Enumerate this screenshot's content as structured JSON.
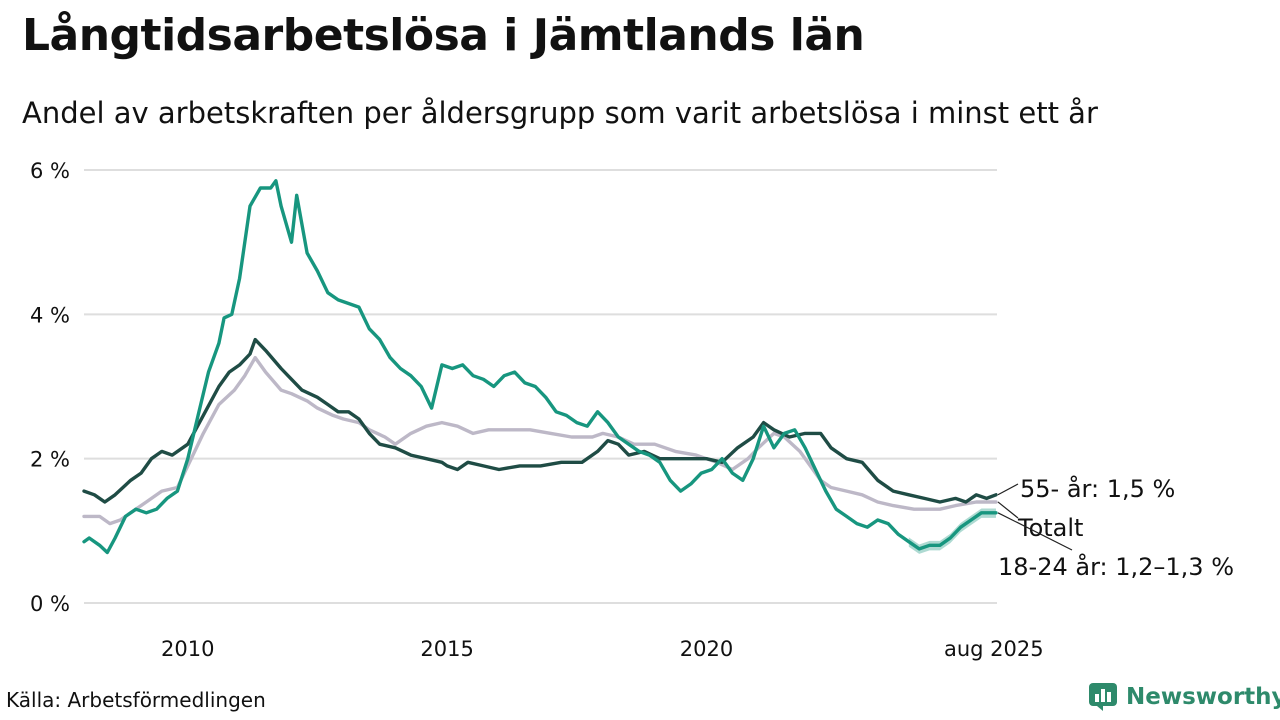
{
  "title": "Långtidsarbetslösa i Jämtlands län",
  "subtitle": "Andel av arbetskraften per åldersgrupp som varit arbetslösa i minst ett år",
  "source": "Källa: Arbetsförmedlingen",
  "brand": "Newsworthy",
  "chart_data": {
    "type": "line",
    "x_unit": "year",
    "xlim": [
      2008.0,
      2025.6
    ],
    "ylim": [
      0,
      6
    ],
    "grid": true,
    "y_ticks": [
      {
        "value": 0,
        "label": "0 %"
      },
      {
        "value": 2,
        "label": "2 %"
      },
      {
        "value": 4,
        "label": "4 %"
      },
      {
        "value": 6,
        "label": "6 %"
      }
    ],
    "x_ticks": [
      {
        "value": 2010,
        "label": "2010"
      },
      {
        "value": 2015,
        "label": "2015"
      },
      {
        "value": 2020,
        "label": "2020"
      },
      {
        "value": 2025.58,
        "label": "aug 2025"
      }
    ],
    "series": [
      {
        "name": "Totalt",
        "color": "#bdb8c7",
        "label": "Totalt",
        "points": [
          [
            2008.0,
            1.2
          ],
          [
            2008.3,
            1.2
          ],
          [
            2008.5,
            1.1
          ],
          [
            2008.7,
            1.15
          ],
          [
            2009.0,
            1.3
          ],
          [
            2009.2,
            1.4
          ],
          [
            2009.5,
            1.55
          ],
          [
            2009.8,
            1.6
          ],
          [
            2010.0,
            1.9
          ],
          [
            2010.3,
            2.35
          ],
          [
            2010.6,
            2.75
          ],
          [
            2010.9,
            2.95
          ],
          [
            2011.1,
            3.15
          ],
          [
            2011.3,
            3.4
          ],
          [
            2011.5,
            3.2
          ],
          [
            2011.8,
            2.95
          ],
          [
            2012.0,
            2.9
          ],
          [
            2012.3,
            2.8
          ],
          [
            2012.5,
            2.7
          ],
          [
            2012.8,
            2.6
          ],
          [
            2013.0,
            2.55
          ],
          [
            2013.3,
            2.5
          ],
          [
            2013.5,
            2.4
          ],
          [
            2013.8,
            2.3
          ],
          [
            2014.0,
            2.2
          ],
          [
            2014.3,
            2.35
          ],
          [
            2014.6,
            2.45
          ],
          [
            2014.9,
            2.5
          ],
          [
            2015.2,
            2.45
          ],
          [
            2015.5,
            2.35
          ],
          [
            2015.8,
            2.4
          ],
          [
            2016.2,
            2.4
          ],
          [
            2016.6,
            2.4
          ],
          [
            2017.0,
            2.35
          ],
          [
            2017.4,
            2.3
          ],
          [
            2017.8,
            2.3
          ],
          [
            2018.0,
            2.35
          ],
          [
            2018.3,
            2.3
          ],
          [
            2018.6,
            2.2
          ],
          [
            2019.0,
            2.2
          ],
          [
            2019.4,
            2.1
          ],
          [
            2019.8,
            2.05
          ],
          [
            2020.2,
            1.95
          ],
          [
            2020.5,
            1.85
          ],
          [
            2020.8,
            2.0
          ],
          [
            2021.0,
            2.15
          ],
          [
            2021.3,
            2.35
          ],
          [
            2021.5,
            2.3
          ],
          [
            2021.8,
            2.1
          ],
          [
            2022.0,
            1.9
          ],
          [
            2022.2,
            1.7
          ],
          [
            2022.4,
            1.6
          ],
          [
            2022.7,
            1.55
          ],
          [
            2023.0,
            1.5
          ],
          [
            2023.3,
            1.4
          ],
          [
            2023.6,
            1.35
          ],
          [
            2024.0,
            1.3
          ],
          [
            2024.5,
            1.3
          ],
          [
            2024.8,
            1.35
          ],
          [
            2025.2,
            1.4
          ],
          [
            2025.58,
            1.4
          ]
        ]
      },
      {
        "name": "55- år",
        "color": "#1f4c45",
        "label": "55- år: 1,5 %",
        "points": [
          [
            2008.0,
            1.55
          ],
          [
            2008.2,
            1.5
          ],
          [
            2008.4,
            1.4
          ],
          [
            2008.6,
            1.5
          ],
          [
            2008.9,
            1.7
          ],
          [
            2009.1,
            1.8
          ],
          [
            2009.3,
            2.0
          ],
          [
            2009.5,
            2.1
          ],
          [
            2009.7,
            2.05
          ],
          [
            2010.0,
            2.2
          ],
          [
            2010.3,
            2.6
          ],
          [
            2010.6,
            3.0
          ],
          [
            2010.8,
            3.2
          ],
          [
            2011.0,
            3.3
          ],
          [
            2011.2,
            3.45
          ],
          [
            2011.3,
            3.65
          ],
          [
            2011.5,
            3.5
          ],
          [
            2011.8,
            3.25
          ],
          [
            2012.0,
            3.1
          ],
          [
            2012.2,
            2.95
          ],
          [
            2012.5,
            2.85
          ],
          [
            2012.7,
            2.75
          ],
          [
            2012.9,
            2.65
          ],
          [
            2013.1,
            2.65
          ],
          [
            2013.3,
            2.55
          ],
          [
            2013.5,
            2.35
          ],
          [
            2013.7,
            2.2
          ],
          [
            2014.0,
            2.15
          ],
          [
            2014.3,
            2.05
          ],
          [
            2014.6,
            2.0
          ],
          [
            2014.9,
            1.95
          ],
          [
            2015.0,
            1.9
          ],
          [
            2015.2,
            1.85
          ],
          [
            2015.4,
            1.95
          ],
          [
            2015.7,
            1.9
          ],
          [
            2016.0,
            1.85
          ],
          [
            2016.4,
            1.9
          ],
          [
            2016.8,
            1.9
          ],
          [
            2017.2,
            1.95
          ],
          [
            2017.6,
            1.95
          ],
          [
            2017.9,
            2.1
          ],
          [
            2018.1,
            2.25
          ],
          [
            2018.3,
            2.2
          ],
          [
            2018.5,
            2.05
          ],
          [
            2018.8,
            2.1
          ],
          [
            2019.1,
            2.0
          ],
          [
            2019.4,
            2.0
          ],
          [
            2019.7,
            2.0
          ],
          [
            2020.0,
            2.0
          ],
          [
            2020.3,
            1.95
          ],
          [
            2020.6,
            2.15
          ],
          [
            2020.9,
            2.3
          ],
          [
            2021.1,
            2.5
          ],
          [
            2021.3,
            2.4
          ],
          [
            2021.6,
            2.3
          ],
          [
            2021.9,
            2.35
          ],
          [
            2022.2,
            2.35
          ],
          [
            2022.4,
            2.15
          ],
          [
            2022.7,
            2.0
          ],
          [
            2023.0,
            1.95
          ],
          [
            2023.3,
            1.7
          ],
          [
            2023.6,
            1.55
          ],
          [
            2023.9,
            1.5
          ],
          [
            2024.2,
            1.45
          ],
          [
            2024.5,
            1.4
          ],
          [
            2024.8,
            1.45
          ],
          [
            2025.0,
            1.4
          ],
          [
            2025.2,
            1.5
          ],
          [
            2025.4,
            1.45
          ],
          [
            2025.58,
            1.5
          ]
        ]
      },
      {
        "name": "18-24 år",
        "color": "#17967f",
        "label": "18-24 år: 1,2–1,3 %",
        "band": [
          1.2,
          1.3
        ],
        "points": [
          [
            2008.0,
            0.85
          ],
          [
            2008.1,
            0.9
          ],
          [
            2008.3,
            0.8
          ],
          [
            2008.45,
            0.7
          ],
          [
            2008.6,
            0.9
          ],
          [
            2008.8,
            1.2
          ],
          [
            2009.0,
            1.3
          ],
          [
            2009.2,
            1.25
          ],
          [
            2009.4,
            1.3
          ],
          [
            2009.6,
            1.45
          ],
          [
            2009.8,
            1.55
          ],
          [
            2010.0,
            2.0
          ],
          [
            2010.2,
            2.6
          ],
          [
            2010.4,
            3.2
          ],
          [
            2010.6,
            3.6
          ],
          [
            2010.7,
            3.95
          ],
          [
            2010.85,
            4.0
          ],
          [
            2011.0,
            4.5
          ],
          [
            2011.2,
            5.5
          ],
          [
            2011.4,
            5.75
          ],
          [
            2011.6,
            5.75
          ],
          [
            2011.7,
            5.85
          ],
          [
            2011.8,
            5.5
          ],
          [
            2012.0,
            5.0
          ],
          [
            2012.1,
            5.65
          ],
          [
            2012.3,
            4.85
          ],
          [
            2012.5,
            4.6
          ],
          [
            2012.7,
            4.3
          ],
          [
            2012.9,
            4.2
          ],
          [
            2013.1,
            4.15
          ],
          [
            2013.3,
            4.1
          ],
          [
            2013.5,
            3.8
          ],
          [
            2013.7,
            3.65
          ],
          [
            2013.9,
            3.4
          ],
          [
            2014.1,
            3.25
          ],
          [
            2014.3,
            3.15
          ],
          [
            2014.5,
            3.0
          ],
          [
            2014.7,
            2.7
          ],
          [
            2014.9,
            3.3
          ],
          [
            2015.1,
            3.25
          ],
          [
            2015.3,
            3.3
          ],
          [
            2015.5,
            3.15
          ],
          [
            2015.7,
            3.1
          ],
          [
            2015.9,
            3.0
          ],
          [
            2016.1,
            3.15
          ],
          [
            2016.3,
            3.2
          ],
          [
            2016.5,
            3.05
          ],
          [
            2016.7,
            3.0
          ],
          [
            2016.9,
            2.85
          ],
          [
            2017.1,
            2.65
          ],
          [
            2017.3,
            2.6
          ],
          [
            2017.5,
            2.5
          ],
          [
            2017.7,
            2.45
          ],
          [
            2017.9,
            2.65
          ],
          [
            2018.1,
            2.5
          ],
          [
            2018.3,
            2.3
          ],
          [
            2018.5,
            2.2
          ],
          [
            2018.7,
            2.1
          ],
          [
            2018.9,
            2.05
          ],
          [
            2019.1,
            1.95
          ],
          [
            2019.3,
            1.7
          ],
          [
            2019.5,
            1.55
          ],
          [
            2019.7,
            1.65
          ],
          [
            2019.9,
            1.8
          ],
          [
            2020.1,
            1.85
          ],
          [
            2020.3,
            2.0
          ],
          [
            2020.5,
            1.8
          ],
          [
            2020.7,
            1.7
          ],
          [
            2020.9,
            2.0
          ],
          [
            2021.1,
            2.45
          ],
          [
            2021.3,
            2.15
          ],
          [
            2021.5,
            2.35
          ],
          [
            2021.7,
            2.4
          ],
          [
            2021.9,
            2.15
          ],
          [
            2022.1,
            1.85
          ],
          [
            2022.3,
            1.55
          ],
          [
            2022.5,
            1.3
          ],
          [
            2022.7,
            1.2
          ],
          [
            2022.9,
            1.1
          ],
          [
            2023.1,
            1.05
          ],
          [
            2023.3,
            1.15
          ],
          [
            2023.5,
            1.1
          ],
          [
            2023.7,
            0.95
          ],
          [
            2023.9,
            0.85
          ],
          [
            2024.1,
            0.75
          ],
          [
            2024.3,
            0.8
          ],
          [
            2024.5,
            0.8
          ],
          [
            2024.7,
            0.9
          ],
          [
            2024.9,
            1.05
          ],
          [
            2025.1,
            1.15
          ],
          [
            2025.3,
            1.25
          ],
          [
            2025.58,
            1.25
          ]
        ]
      }
    ]
  }
}
